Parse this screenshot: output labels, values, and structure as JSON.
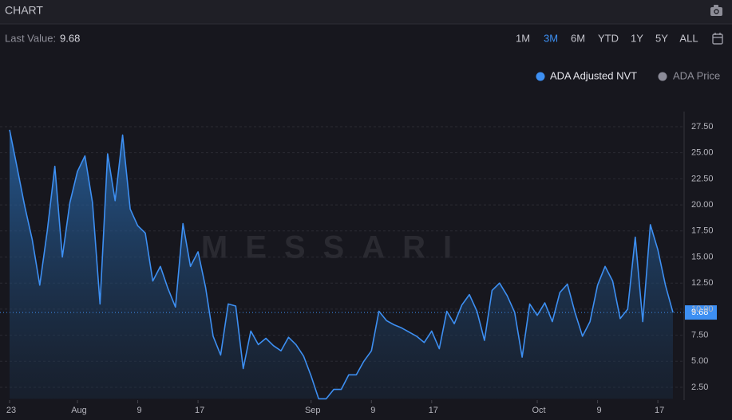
{
  "header": {
    "title": "CHART"
  },
  "toolbar": {
    "last_value_caption": "Last Value:",
    "ranges": [
      "1M",
      "3M",
      "6M",
      "YTD",
      "1Y",
      "5Y",
      "ALL"
    ],
    "selected": "3M"
  },
  "chart_data": {
    "type": "area",
    "watermark": "MESSARI",
    "x": [
      0,
      1,
      2,
      3,
      4,
      5,
      6,
      7,
      8,
      9,
      10,
      11,
      12,
      13,
      14,
      15,
      16,
      17,
      18,
      19,
      20,
      21,
      22,
      23,
      24,
      25,
      26,
      27,
      28,
      29,
      30,
      31,
      32,
      33,
      34,
      35,
      36,
      37,
      38,
      39,
      40,
      41,
      42,
      43,
      44,
      45,
      46,
      47,
      48,
      49,
      50,
      51,
      52,
      53,
      54,
      55,
      56,
      57,
      58,
      59,
      60,
      61,
      62,
      63,
      64,
      65,
      66,
      67,
      68,
      69,
      70,
      71,
      72,
      73,
      74,
      75,
      76,
      77,
      78,
      79,
      80,
      81,
      82,
      83,
      84,
      85,
      86,
      87,
      88
    ],
    "series": [
      {
        "name": "ADA Adjusted NVT",
        "color": "#3d8ff2",
        "values": [
          27.2,
          23.6,
          19.9,
          16.7,
          12.3,
          17.5,
          23.7,
          15.0,
          20.2,
          23.2,
          24.7,
          20.2,
          10.5,
          24.9,
          20.4,
          26.7,
          19.6,
          18.0,
          17.3,
          12.7,
          14.1,
          12.0,
          10.2,
          18.2,
          14.1,
          15.5,
          12.1,
          7.4,
          5.6,
          10.5,
          10.3,
          4.3,
          7.9,
          6.6,
          7.2,
          6.5,
          6.0,
          7.3,
          6.6,
          5.5,
          3.6,
          1.4,
          1.4,
          2.3,
          2.3,
          3.7,
          3.7,
          5.0,
          6.0,
          9.8,
          8.9,
          8.5,
          8.2,
          7.8,
          7.4,
          6.8,
          7.9,
          6.2,
          9.8,
          8.6,
          10.4,
          11.4,
          9.8,
          7.0,
          11.8,
          12.5,
          11.3,
          9.7,
          5.4,
          10.5,
          9.4,
          10.6,
          8.8,
          11.6,
          12.4,
          9.7,
          7.4,
          8.8,
          12.3,
          14.1,
          12.7,
          9.1,
          10.0,
          16.9,
          8.8,
          18.1,
          15.7,
          12.3,
          9.68
        ]
      }
    ],
    "hidden_series": [
      {
        "name": "ADA Price",
        "color": "#8c8c99"
      }
    ],
    "xlim": [
      0,
      88
    ],
    "xticks": [
      {
        "value": 0,
        "label": "23"
      },
      {
        "value": 9,
        "label": "Aug"
      },
      {
        "value": 17,
        "label": "9"
      },
      {
        "value": 25,
        "label": "17"
      },
      {
        "value": 40,
        "label": "Sep"
      },
      {
        "value": 48,
        "label": "9"
      },
      {
        "value": 56,
        "label": "17"
      },
      {
        "value": 70,
        "label": "Oct"
      },
      {
        "value": 78,
        "label": "9"
      },
      {
        "value": 86,
        "label": "17"
      }
    ],
    "ylim": [
      1.4,
      28.95
    ],
    "yticks": [
      {
        "value": 2.5,
        "label": "2.50"
      },
      {
        "value": 5,
        "label": "5.00"
      },
      {
        "value": 7.5,
        "label": "7.50"
      },
      {
        "value": 10,
        "label": "10.00"
      },
      {
        "value": 12.5,
        "label": "12.50"
      },
      {
        "value": 15,
        "label": "15.00"
      },
      {
        "value": 17.5,
        "label": "17.50"
      },
      {
        "value": 20,
        "label": "20.00"
      },
      {
        "value": 22.5,
        "label": "22.50"
      },
      {
        "value": 25,
        "label": "25.00"
      },
      {
        "value": 27.5,
        "label": "27.50"
      }
    ],
    "grid": true
  }
}
